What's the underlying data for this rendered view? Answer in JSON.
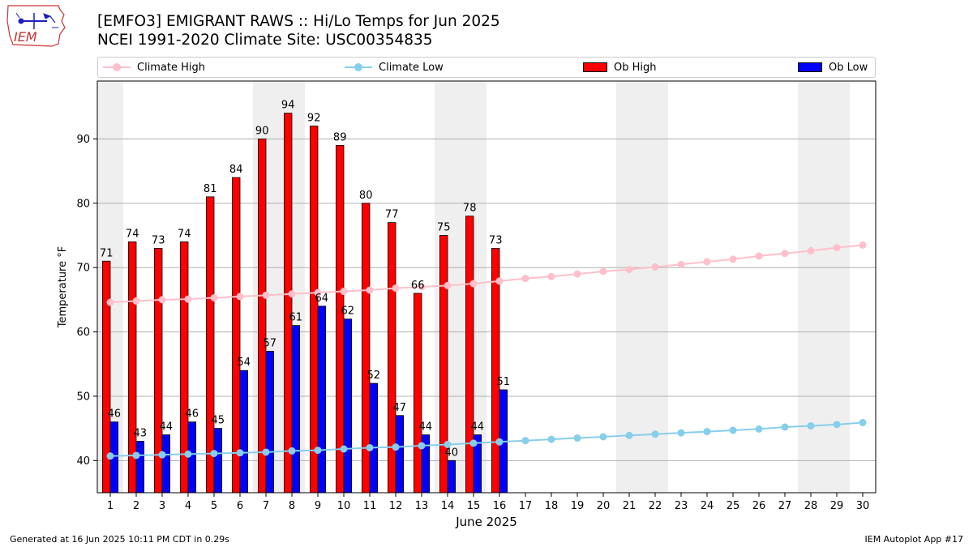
{
  "logo": {
    "text": "IEM",
    "colors": {
      "border": "#cc3333",
      "text": "#cc3333",
      "icon": "#1f1fbf"
    }
  },
  "title": {
    "line1": "[EMFO3] EMIGRANT RAWS :: Hi/Lo Temps for Jun 2025",
    "line2": "NCEI 1991-2020 Climate Site: USC00354835"
  },
  "legend": {
    "climate_high": "Climate High",
    "climate_low": "Climate Low",
    "ob_high": "Ob High",
    "ob_low": "Ob Low"
  },
  "footer": {
    "left": "Generated at 16 Jun 2025 10:11 PM CDT in 0.29s",
    "right": "IEM Autoplot App #17"
  },
  "colors": {
    "ob_high": "#ff0000",
    "ob_low": "#0000ff",
    "climate_high": "#ffc0cb",
    "climate_low": "#87ceeb",
    "weekend_shade": "#efefef",
    "grid": "#b0b0b0"
  },
  "chart_data": {
    "type": "bar",
    "xlabel": "June 2025",
    "ylabel": "Temperature °F",
    "xlim": [
      0.5,
      30.5
    ],
    "ylim": [
      35,
      99
    ],
    "yticks": [
      40,
      50,
      60,
      70,
      80,
      90
    ],
    "grid": "horizontal",
    "legend_position": "top",
    "days": [
      1,
      2,
      3,
      4,
      5,
      6,
      7,
      8,
      9,
      10,
      11,
      12,
      13,
      14,
      15,
      16,
      17,
      18,
      19,
      20,
      21,
      22,
      23,
      24,
      25,
      26,
      27,
      28,
      29,
      30
    ],
    "weekend_days": [
      1,
      7,
      8,
      14,
      15,
      21,
      22,
      28,
      29
    ],
    "series": [
      {
        "name": "Ob High",
        "kind": "bar",
        "values": [
          71,
          74,
          73,
          74,
          81,
          84,
          90,
          94,
          92,
          89,
          80,
          77,
          66,
          75,
          78,
          73
        ]
      },
      {
        "name": "Ob Low",
        "kind": "bar",
        "values": [
          46,
          43,
          44,
          46,
          45,
          54,
          57,
          61,
          64,
          62,
          52,
          47,
          44,
          40,
          44,
          51
        ]
      },
      {
        "name": "Climate High",
        "kind": "line",
        "values": [
          64.6,
          64.8,
          65.0,
          65.1,
          65.3,
          65.5,
          65.7,
          65.9,
          66.1,
          66.3,
          66.5,
          66.8,
          67.0,
          67.2,
          67.5,
          67.9,
          68.3,
          68.6,
          69.0,
          69.4,
          69.7,
          70.1,
          70.5,
          70.9,
          71.3,
          71.8,
          72.2,
          72.6,
          73.1,
          73.5
        ]
      },
      {
        "name": "Climate Low",
        "kind": "line",
        "values": [
          40.7,
          40.8,
          40.9,
          41.0,
          41.1,
          41.2,
          41.3,
          41.5,
          41.6,
          41.8,
          42.0,
          42.1,
          42.3,
          42.5,
          42.7,
          42.9,
          43.1,
          43.3,
          43.5,
          43.7,
          43.9,
          44.1,
          44.3,
          44.5,
          44.7,
          44.9,
          45.2,
          45.4,
          45.6,
          45.9
        ]
      }
    ]
  }
}
